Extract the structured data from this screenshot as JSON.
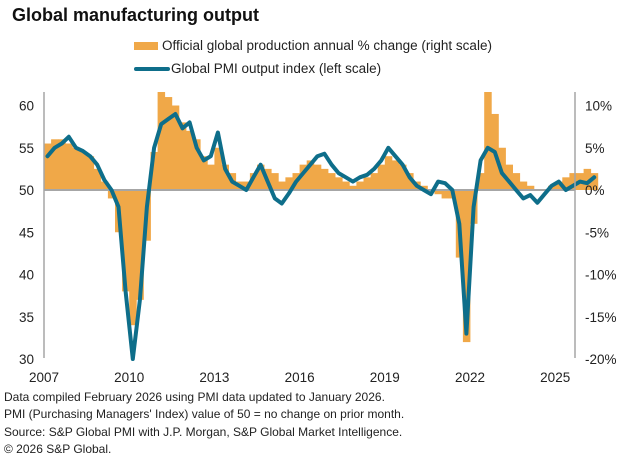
{
  "chart_data": {
    "type": "bar+line",
    "title": "Global manufacturing output",
    "legend": [
      {
        "label": "Official global production annual % change (right scale)",
        "kind": "bar",
        "color": "#F0A848"
      },
      {
        "label": "Global PMI output index (left scale)",
        "kind": "line",
        "color": "#0E6E8A"
      }
    ],
    "legend_placement": "top-center",
    "x_ticks": [
      "2007",
      "2010",
      "2013",
      "2016",
      "2019",
      "2022",
      "2025"
    ],
    "x_range": [
      2007.0,
      2026.1
    ],
    "left_axis": {
      "label": "",
      "ticks": [
        "30",
        "35",
        "40",
        "45",
        "50",
        "55",
        "60"
      ],
      "range": [
        30,
        62
      ]
    },
    "right_axis": {
      "label": "",
      "ticks": [
        "-20%",
        "-15%",
        "-10%",
        "-5%",
        "0%",
        "5%",
        "10%"
      ],
      "range": [
        -20,
        12
      ]
    },
    "x_step_years": 0.25,
    "x_start": 2007.0,
    "series": [
      {
        "name": "Global PMI output index (left scale)",
        "axis": "left",
        "values": [
          54.0,
          55.0,
          55.5,
          56.3,
          55.0,
          54.6,
          54.0,
          53.0,
          51.2,
          50.0,
          48.0,
          38.0,
          30.0,
          37.0,
          48.0,
          55.0,
          57.8,
          58.4,
          59.0,
          57.3,
          58.0,
          55.0,
          53.5,
          54.0,
          56.8,
          52.5,
          51.0,
          50.5,
          50.0,
          51.5,
          53.0,
          51.0,
          49.0,
          48.4,
          49.6,
          51.0,
          52.0,
          53.0,
          54.0,
          54.3,
          53.0,
          52.0,
          51.5,
          51.0,
          51.5,
          51.8,
          52.5,
          53.5,
          55.0,
          54.0,
          53.0,
          51.5,
          50.5,
          50.0,
          49.5,
          51.0,
          50.8,
          50.0,
          46.0,
          33.0,
          48.0,
          53.5,
          55.0,
          54.5,
          52.0,
          51.0,
          50.0,
          49.0,
          49.4,
          48.5,
          49.5,
          50.5,
          51.0,
          50.0,
          50.5,
          51.0,
          50.8,
          51.5
        ]
      },
      {
        "name": "Official global production annual % change (right scale)",
        "axis": "right",
        "values": [
          5.5,
          6.0,
          6.0,
          5.5,
          5.0,
          4.5,
          4.0,
          2.5,
          1.0,
          -1.0,
          -5.0,
          -12.0,
          -16.0,
          -13.0,
          -6.0,
          4.5,
          12.0,
          11.0,
          10.0,
          8.0,
          7.0,
          6.0,
          4.0,
          3.0,
          5.0,
          3.0,
          2.0,
          1.0,
          1.0,
          2.0,
          3.0,
          2.5,
          2.0,
          1.0,
          1.5,
          2.0,
          3.0,
          3.5,
          3.0,
          2.5,
          2.0,
          1.5,
          1.0,
          0.5,
          1.0,
          1.5,
          2.0,
          3.0,
          4.0,
          3.5,
          3.0,
          2.0,
          1.0,
          0.5,
          0.0,
          -0.5,
          -1.0,
          -1.0,
          -8.0,
          -18.0,
          -4.0,
          2.0,
          12.0,
          9.0,
          5.0,
          3.0,
          2.0,
          1.0,
          0.5,
          0.0,
          0.0,
          0.5,
          1.0,
          1.5,
          2.0,
          2.0,
          2.5,
          2.0
        ]
      }
    ]
  },
  "notes": [
    "Data compiled February 2026 using PMI data updated to January 2026.",
    "PMI (Purchasing Managers' Index) value of 50 = no change on prior month.",
    "Source: S&P Global PMI with J.P. Morgan, S&P Global Market Intelligence.",
    "© 2026 S&P Global."
  ]
}
